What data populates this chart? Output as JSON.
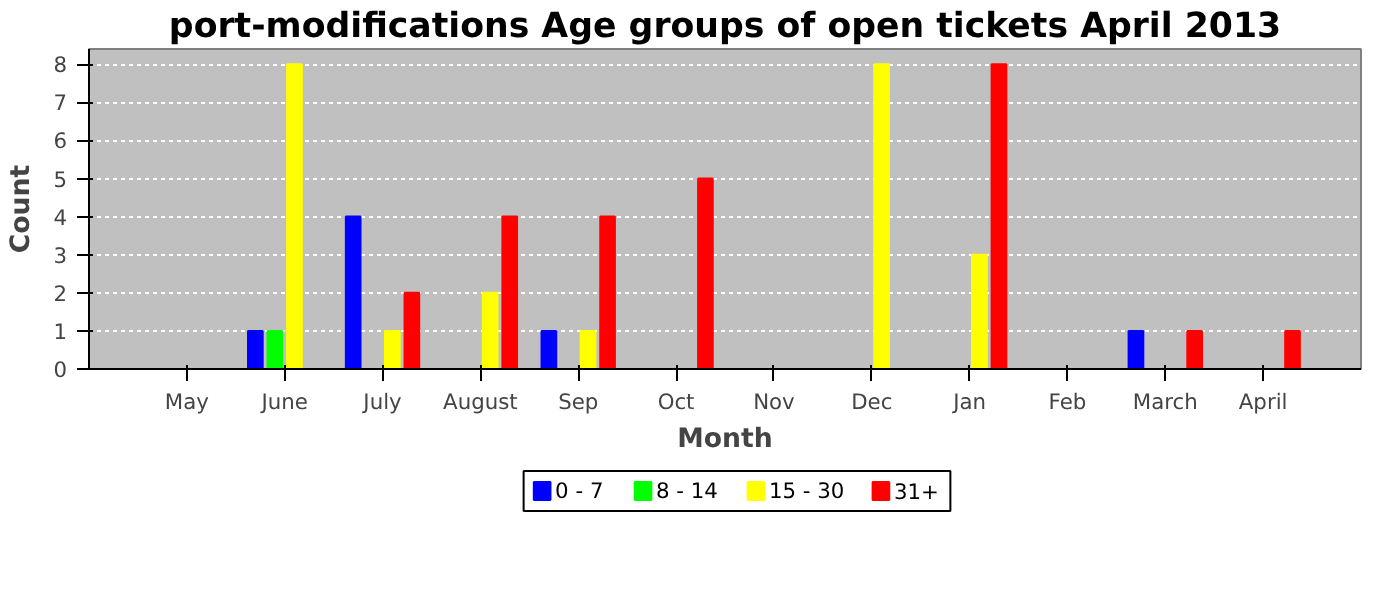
{
  "chart_data": {
    "type": "bar",
    "title": "port-modifications Age groups of open tickets April 2013",
    "xlabel": "Month",
    "ylabel": "Count",
    "categories": [
      "May",
      "June",
      "July",
      "August",
      "Sep",
      "Oct",
      "Nov",
      "Dec",
      "Jan",
      "Feb",
      "March",
      "April"
    ],
    "series": [
      {
        "name": "0 - 7",
        "color": "#0000ff",
        "values": [
          0,
          1,
          4,
          0,
          1,
          0,
          0,
          0,
          0,
          0,
          1,
          0
        ]
      },
      {
        "name": "8 - 14",
        "color": "#00ff00",
        "values": [
          0,
          1,
          0,
          0,
          0,
          0,
          0,
          0,
          0,
          0,
          0,
          0
        ]
      },
      {
        "name": "15 - 30",
        "color": "#ffff00",
        "values": [
          0,
          8,
          1,
          2,
          1,
          0,
          0,
          8,
          3,
          0,
          0,
          0
        ]
      },
      {
        "name": "31+",
        "color": "#ff0000",
        "values": [
          0,
          0,
          2,
          4,
          4,
          5,
          0,
          0,
          8,
          0,
          1,
          1
        ]
      }
    ],
    "ylim": [
      0,
      8.4
    ],
    "yticks": [
      0,
      1,
      2,
      3,
      4,
      5,
      6,
      7,
      8
    ],
    "grid": "y",
    "legend": "bottom"
  }
}
